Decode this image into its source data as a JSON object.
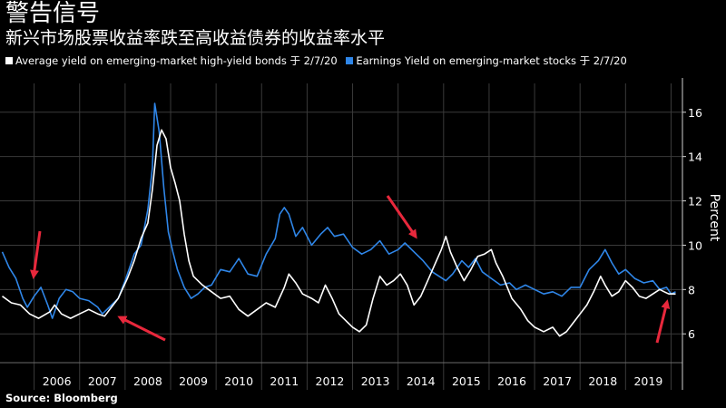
{
  "header": {
    "title": "警告信号",
    "subtitle": "新兴市场股票收益率跌至高收益债券的收益率水平"
  },
  "source": "Source: Bloomberg",
  "colors": {
    "bonds": "#ffffff",
    "stocks": "#2f86e8",
    "arrow": "#e8283c",
    "grid": "#3a3a3a"
  },
  "chart_data": {
    "type": "line",
    "ylabel": "Percent",
    "ylim": [
      4.7,
      17.3
    ],
    "xlim": [
      2005.25,
      2020.25
    ],
    "yticks": [
      6,
      8,
      10,
      12,
      14,
      16
    ],
    "xtick_labels": [
      "2006",
      "2007",
      "2008",
      "2009",
      "2010",
      "2011",
      "2012",
      "2013",
      "2014",
      "2015",
      "2016",
      "2017",
      "2018",
      "2019"
    ],
    "grid": true,
    "series": [
      {
        "name": "Average yield on emerging-market high-yield bonds 于 2/7/20",
        "key": "bonds",
        "points": [
          [
            2005.3,
            7.7
          ],
          [
            2005.5,
            7.4
          ],
          [
            2005.7,
            7.3
          ],
          [
            2005.9,
            6.9
          ],
          [
            2006.1,
            6.7
          ],
          [
            2006.35,
            7.0
          ],
          [
            2006.45,
            7.3
          ],
          [
            2006.6,
            6.9
          ],
          [
            2006.8,
            6.7
          ],
          [
            2007.0,
            6.9
          ],
          [
            2007.2,
            7.1
          ],
          [
            2007.4,
            6.9
          ],
          [
            2007.55,
            6.8
          ],
          [
            2007.7,
            7.2
          ],
          [
            2007.85,
            7.6
          ],
          [
            2008.05,
            8.5
          ],
          [
            2008.2,
            9.3
          ],
          [
            2008.35,
            10.3
          ],
          [
            2008.5,
            11.0
          ],
          [
            2008.6,
            12.5
          ],
          [
            2008.7,
            14.5
          ],
          [
            2008.8,
            15.2
          ],
          [
            2008.9,
            14.8
          ],
          [
            2009.0,
            13.5
          ],
          [
            2009.1,
            12.8
          ],
          [
            2009.2,
            12.0
          ],
          [
            2009.3,
            10.5
          ],
          [
            2009.4,
            9.3
          ],
          [
            2009.5,
            8.6
          ],
          [
            2009.7,
            8.2
          ],
          [
            2009.9,
            7.9
          ],
          [
            2010.1,
            7.6
          ],
          [
            2010.3,
            7.7
          ],
          [
            2010.5,
            7.1
          ],
          [
            2010.7,
            6.8
          ],
          [
            2010.9,
            7.1
          ],
          [
            2011.1,
            7.4
          ],
          [
            2011.3,
            7.2
          ],
          [
            2011.5,
            8.1
          ],
          [
            2011.6,
            8.7
          ],
          [
            2011.75,
            8.3
          ],
          [
            2011.9,
            7.8
          ],
          [
            2012.1,
            7.6
          ],
          [
            2012.25,
            7.4
          ],
          [
            2012.4,
            8.2
          ],
          [
            2012.55,
            7.6
          ],
          [
            2012.7,
            6.9
          ],
          [
            2012.85,
            6.6
          ],
          [
            2013.0,
            6.3
          ],
          [
            2013.15,
            6.1
          ],
          [
            2013.3,
            6.4
          ],
          [
            2013.45,
            7.6
          ],
          [
            2013.6,
            8.6
          ],
          [
            2013.75,
            8.2
          ],
          [
            2013.9,
            8.4
          ],
          [
            2014.05,
            8.7
          ],
          [
            2014.2,
            8.2
          ],
          [
            2014.35,
            7.3
          ],
          [
            2014.5,
            7.7
          ],
          [
            2014.65,
            8.4
          ],
          [
            2014.8,
            9.1
          ],
          [
            2014.95,
            9.8
          ],
          [
            2015.05,
            10.4
          ],
          [
            2015.15,
            9.7
          ],
          [
            2015.3,
            9.0
          ],
          [
            2015.45,
            8.4
          ],
          [
            2015.6,
            8.9
          ],
          [
            2015.75,
            9.5
          ],
          [
            2015.9,
            9.6
          ],
          [
            2016.05,
            9.8
          ],
          [
            2016.15,
            9.2
          ],
          [
            2016.3,
            8.6
          ],
          [
            2016.5,
            7.6
          ],
          [
            2016.7,
            7.1
          ],
          [
            2016.85,
            6.6
          ],
          [
            2017.0,
            6.3
          ],
          [
            2017.2,
            6.1
          ],
          [
            2017.4,
            6.3
          ],
          [
            2017.55,
            5.9
          ],
          [
            2017.7,
            6.1
          ],
          [
            2017.85,
            6.5
          ],
          [
            2018.0,
            6.9
          ],
          [
            2018.15,
            7.3
          ],
          [
            2018.3,
            7.9
          ],
          [
            2018.45,
            8.6
          ],
          [
            2018.55,
            8.2
          ],
          [
            2018.7,
            7.7
          ],
          [
            2018.85,
            7.9
          ],
          [
            2019.0,
            8.4
          ],
          [
            2019.15,
            8.1
          ],
          [
            2019.3,
            7.7
          ],
          [
            2019.45,
            7.6
          ],
          [
            2019.6,
            7.8
          ],
          [
            2019.75,
            8.0
          ],
          [
            2019.85,
            7.9
          ],
          [
            2019.95,
            7.8
          ],
          [
            2020.1,
            7.8
          ]
        ]
      },
      {
        "name": "Earnings Yield on emerging-market stocks 于 2/7/20",
        "key": "stocks",
        "points": [
          [
            2005.3,
            9.7
          ],
          [
            2005.45,
            9.0
          ],
          [
            2005.6,
            8.5
          ],
          [
            2005.75,
            7.6
          ],
          [
            2005.85,
            7.2
          ],
          [
            2006.0,
            7.7
          ],
          [
            2006.15,
            8.1
          ],
          [
            2006.3,
            7.3
          ],
          [
            2006.4,
            6.7
          ],
          [
            2006.55,
            7.6
          ],
          [
            2006.7,
            8.0
          ],
          [
            2006.85,
            7.9
          ],
          [
            2007.0,
            7.6
          ],
          [
            2007.2,
            7.5
          ],
          [
            2007.4,
            7.2
          ],
          [
            2007.5,
            6.9
          ],
          [
            2007.65,
            7.2
          ],
          [
            2007.85,
            7.6
          ],
          [
            2008.0,
            8.4
          ],
          [
            2008.2,
            9.6
          ],
          [
            2008.35,
            10.0
          ],
          [
            2008.5,
            11.6
          ],
          [
            2008.6,
            13.5
          ],
          [
            2008.65,
            16.4
          ],
          [
            2008.75,
            15.1
          ],
          [
            2008.85,
            12.6
          ],
          [
            2008.95,
            10.6
          ],
          [
            2009.05,
            9.7
          ],
          [
            2009.15,
            8.9
          ],
          [
            2009.3,
            8.1
          ],
          [
            2009.45,
            7.6
          ],
          [
            2009.6,
            7.8
          ],
          [
            2009.75,
            8.1
          ],
          [
            2009.9,
            8.2
          ],
          [
            2010.1,
            8.9
          ],
          [
            2010.3,
            8.8
          ],
          [
            2010.5,
            9.4
          ],
          [
            2010.7,
            8.7
          ],
          [
            2010.9,
            8.6
          ],
          [
            2011.1,
            9.6
          ],
          [
            2011.3,
            10.3
          ],
          [
            2011.4,
            11.4
          ],
          [
            2011.5,
            11.7
          ],
          [
            2011.6,
            11.4
          ],
          [
            2011.75,
            10.4
          ],
          [
            2011.9,
            10.8
          ],
          [
            2012.1,
            10.0
          ],
          [
            2012.3,
            10.5
          ],
          [
            2012.45,
            10.8
          ],
          [
            2012.6,
            10.4
          ],
          [
            2012.8,
            10.5
          ],
          [
            2013.0,
            9.9
          ],
          [
            2013.2,
            9.6
          ],
          [
            2013.4,
            9.8
          ],
          [
            2013.6,
            10.2
          ],
          [
            2013.8,
            9.6
          ],
          [
            2014.0,
            9.8
          ],
          [
            2014.15,
            10.1
          ],
          [
            2014.35,
            9.7
          ],
          [
            2014.55,
            9.3
          ],
          [
            2014.75,
            8.8
          ],
          [
            2014.9,
            8.6
          ],
          [
            2015.05,
            8.4
          ],
          [
            2015.2,
            8.7
          ],
          [
            2015.4,
            9.3
          ],
          [
            2015.55,
            9.0
          ],
          [
            2015.7,
            9.4
          ],
          [
            2015.85,
            8.8
          ],
          [
            2016.05,
            8.5
          ],
          [
            2016.25,
            8.2
          ],
          [
            2016.45,
            8.3
          ],
          [
            2016.6,
            8.0
          ],
          [
            2016.8,
            8.2
          ],
          [
            2017.0,
            8.0
          ],
          [
            2017.2,
            7.8
          ],
          [
            2017.4,
            7.9
          ],
          [
            2017.6,
            7.7
          ],
          [
            2017.8,
            8.1
          ],
          [
            2018.0,
            8.1
          ],
          [
            2018.2,
            8.9
          ],
          [
            2018.4,
            9.3
          ],
          [
            2018.55,
            9.8
          ],
          [
            2018.7,
            9.2
          ],
          [
            2018.85,
            8.7
          ],
          [
            2019.0,
            8.9
          ],
          [
            2019.2,
            8.5
          ],
          [
            2019.4,
            8.3
          ],
          [
            2019.6,
            8.4
          ],
          [
            2019.75,
            8.0
          ],
          [
            2019.9,
            8.1
          ],
          [
            2020.0,
            7.8
          ],
          [
            2020.1,
            7.9
          ]
        ]
      }
    ]
  }
}
